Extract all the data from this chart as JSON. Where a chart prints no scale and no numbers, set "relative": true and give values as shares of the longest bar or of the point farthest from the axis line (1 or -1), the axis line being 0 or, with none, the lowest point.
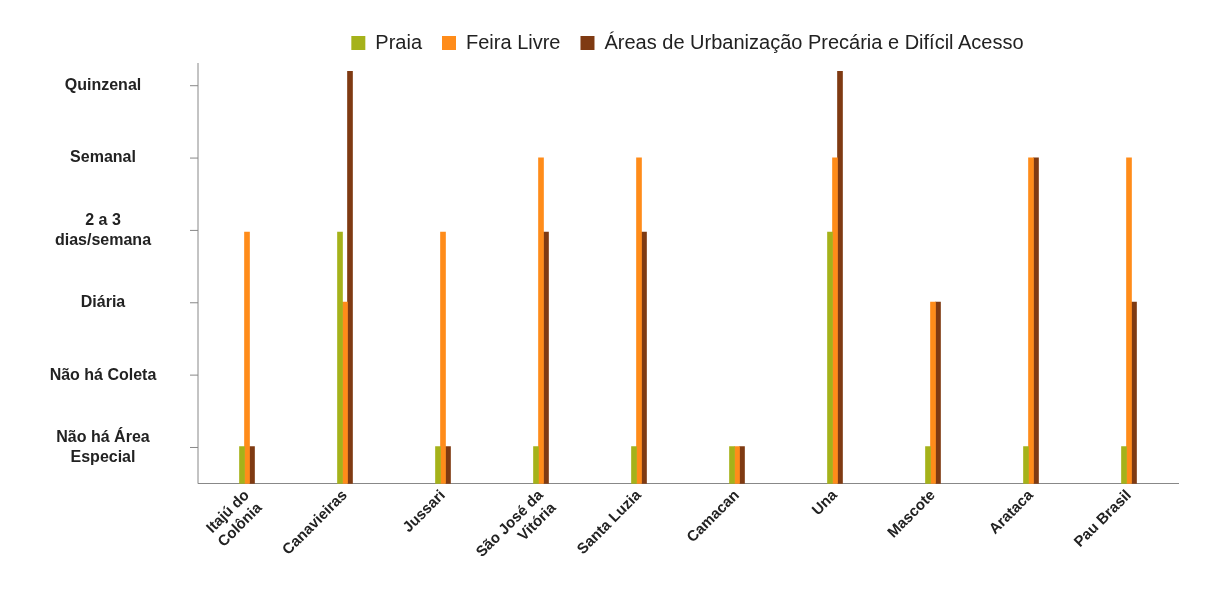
{
  "chart_data": {
    "type": "bar",
    "relative": true,
    "categories": [
      "Itajú do Colônia",
      "Canavieiras",
      "Jussari",
      "São José da Vitória",
      "Santa Luzia",
      "Camacan",
      "Una",
      "Mascote",
      "Arataca",
      "Pau Brasil"
    ],
    "series": [
      {
        "name": "Praia",
        "color": "#a5b21a",
        "values": [
          0.09,
          0.61,
          0.09,
          0.09,
          0.09,
          0.09,
          0.61,
          0.09,
          0.09,
          0.09
        ]
      },
      {
        "name": "Feira Livre",
        "color": "#ff8c1a",
        "values": [
          0.61,
          0.44,
          0.61,
          0.79,
          0.79,
          0.09,
          0.79,
          0.44,
          0.79,
          0.79
        ]
      },
      {
        "name": "Áreas de Urbanização Precária e Difícil Acesso",
        "color": "#7f3a12",
        "values": [
          0.09,
          1,
          0.09,
          0.61,
          0.61,
          0.09,
          1,
          0.44,
          0.79,
          0.44
        ]
      }
    ],
    "annotations": [
      "Não há Área Especial",
      "Não há Coleta",
      "Diária",
      "2 a 3 dias/semana",
      "Semanal",
      "Quinzenal"
    ],
    "grid": false,
    "legend": "top"
  }
}
